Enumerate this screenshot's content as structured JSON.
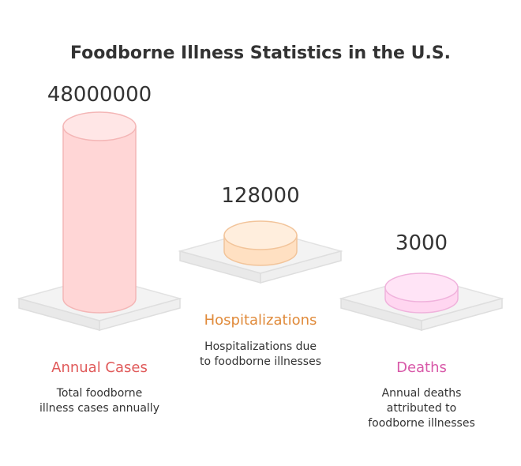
{
  "chart_data": {
    "type": "bar",
    "title": "Foodborne Illness Statistics in the U.S.",
    "categories": [
      "Annual Cases",
      "Hospitalizations",
      "Deaths"
    ],
    "values": [
      48000000,
      128000,
      3000
    ],
    "value_labels": [
      "48000000",
      "128000",
      "3000"
    ],
    "descriptions": [
      [
        "Total foodborne",
        "illness cases annually"
      ],
      [
        "Hospitalizations due",
        "to foodborne illnesses"
      ],
      [
        "Annual deaths",
        "attributed to",
        "foodborne illnesses"
      ]
    ],
    "label_colors": [
      "#e05a5a",
      "#e08a3a",
      "#d858a8"
    ],
    "cylinder_colors": [
      {
        "fill": "#ffd6d6",
        "top": "#ffe6e6",
        "stroke": "#f4b6b6"
      },
      {
        "fill": "#ffe0c2",
        "top": "#ffeedd",
        "stroke": "#f2c49a"
      },
      {
        "fill": "#ffd6f0",
        "top": "#ffe4f6",
        "stroke": "#f0b2dc"
      }
    ],
    "scale": "nonlinear (visual emphasis)"
  }
}
